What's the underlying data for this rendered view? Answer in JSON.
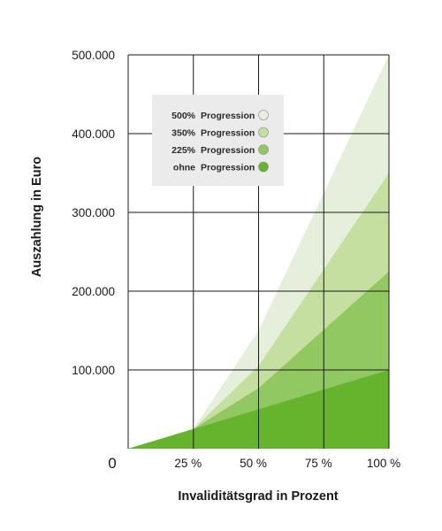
{
  "chart_data": {
    "type": "area",
    "xlabel": "Invaliditätsgrad in Prozent",
    "ylabel": "Auszahlung in Euro",
    "origin_label": "0",
    "x_ticks": [
      "25 %",
      "50 %",
      "75 %",
      "100 %"
    ],
    "y_ticks": [
      "100.000",
      "200.000",
      "300.000",
      "400.000",
      "500.000"
    ],
    "xlim": [
      0,
      100
    ],
    "ylim": [
      0,
      500000
    ],
    "grid": true,
    "legend_position": "top-left",
    "x": [
      0,
      25,
      50,
      100
    ],
    "series": [
      {
        "name": "500% Progression",
        "legend_prefix": "500%",
        "legend_suffix": "Progression",
        "color": "#e6efdc",
        "values": [
          0,
          25000,
          150000,
          500000
        ]
      },
      {
        "name": "350% Progression",
        "legend_prefix": "350%",
        "legend_suffix": "Progression",
        "color": "#c4df9f",
        "values": [
          0,
          25000,
          105000,
          350000
        ]
      },
      {
        "name": "225% Progression",
        "legend_prefix": "225%",
        "legend_suffix": "Progression",
        "color": "#91c861",
        "values": [
          0,
          25000,
          77000,
          225000
        ]
      },
      {
        "name": "ohne Progression",
        "legend_prefix": "ohne",
        "legend_suffix": "Progression",
        "color": "#66b32e",
        "values": [
          0,
          25000,
          50000,
          100000
        ]
      }
    ],
    "colors": {
      "legend_background": "#ebebeb",
      "grid": "#1a1a1a",
      "legend_marker_stroke": "#8a8a8a"
    }
  }
}
